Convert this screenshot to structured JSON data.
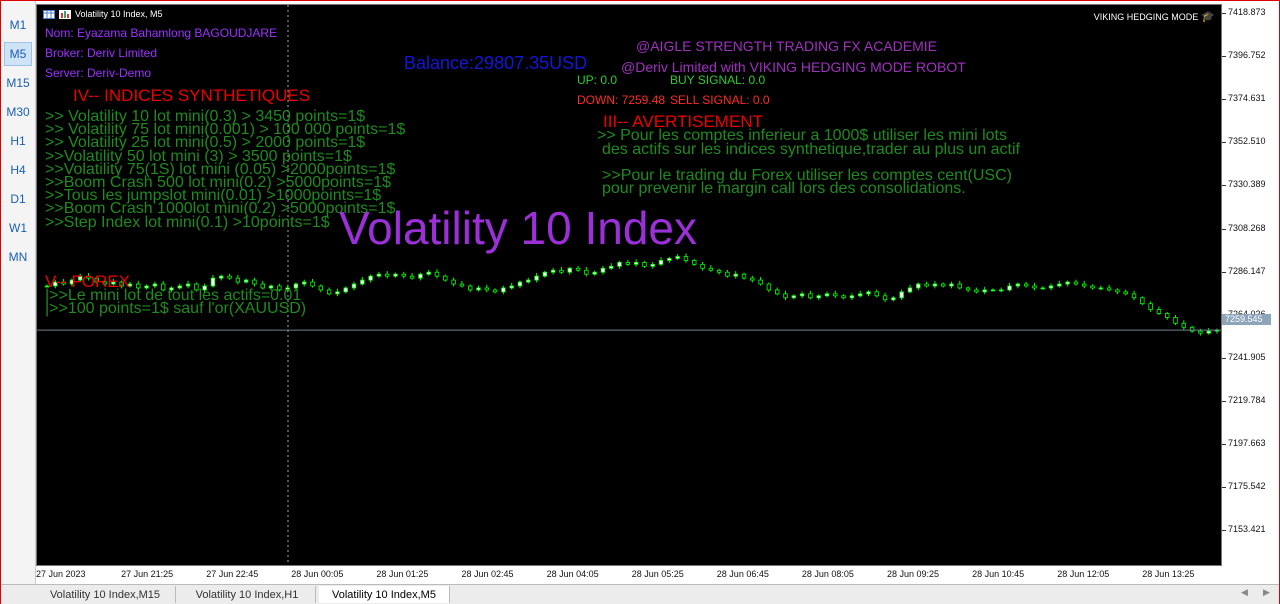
{
  "sidebar": {
    "timeframes": [
      "M1",
      "M5",
      "M15",
      "M30",
      "H1",
      "H4",
      "D1",
      "W1",
      "MN"
    ],
    "active": "M5"
  },
  "chart": {
    "title": "Volatility 10 Index, M5",
    "robot_label": "VIKING HEDGING MODE",
    "watermark": "Volatility 10 Index",
    "info": {
      "nom": "Nom: Eyazama Bahamlong BAGOUDJARE",
      "broker": "Broker: Deriv Limited",
      "server": "Server: Deriv-Demo"
    },
    "balance": "Balance:29807.35USD",
    "academy": "@AIGLE STRENGTH TRADING FX ACADEMIE",
    "deriv_robot": "@Deriv Limited with VIKING HEDGING MODE ROBOT",
    "signals": {
      "up": "UP: 0.0",
      "buy": "BUY SIGNAL: 0.0",
      "down": "DOWN: 7259.48",
      "sell": "SELL SIGNAL: 0.0"
    },
    "section_iv": {
      "title": "IV-- INDICES SYNTHETIQUES",
      "lines": [
        ">> Volatility 10 lot mini(0.3) > 3450 points=1$",
        ">> Volatility 75 lot mini(0.001) > 100 000 points=1$",
        ">> Volatility 25 lot mini(0.5) > 2000 points=1$",
        ">>Volatility 50 lot mini (3) > 3500 points=1$",
        ">>Volatility 75(1S) lot mini (0.05) >2000points=1$",
        ">>Boom Crash 500 lot mini(0.2) >5000points=1$",
        ">>Tous les jumpslot mini(0.01) >1000points=1$",
        ">>Boom Crash 1000lot mini(0.2) >5000points=1$",
        ">>Step Index lot mini(0.1) >10points=1$"
      ]
    },
    "section_v": {
      "title": "V-- FOREX",
      "lines": [
        "|>>Le mini lot de tout les actifs=0.01",
        "|>>100 points=1$ sauf l'or(XAUUSD)"
      ]
    },
    "section_iii": {
      "title": "III-- AVERTISEMENT",
      "lines": [
        ">> Pour les comptes inferieur a 1000$ utiliser les mini lots",
        "des actifs sur les indices synthetique,trader au plus un actif",
        ">>Pour le trading du Forex utiliser les comptes cent(USC)",
        "pour prevenir le margin call lors des consolidations."
      ]
    },
    "current_price": "7259.545",
    "colors": {
      "background": "#000000",
      "candle_bull": "#ffffff",
      "candle_bear": "#00ff00",
      "price_line": "#708090"
    }
  },
  "price_axis": [
    "7418.873",
    "7396.752",
    "7374.631",
    "7352.510",
    "7330.389",
    "7308.268",
    "7286.147",
    "7264.026",
    "7241.905",
    "7219.784",
    "7197.663",
    "7175.542",
    "7153.421"
  ],
  "time_axis": [
    "27 Jun 2023",
    "27 Jun 21:25",
    "27 Jun 22:45",
    "28 Jun 00:05",
    "28 Jun 01:25",
    "28 Jun 02:45",
    "28 Jun 04:05",
    "28 Jun 05:25",
    "28 Jun 06:45",
    "28 Jun 08:05",
    "28 Jun 09:25",
    "28 Jun 10:45",
    "28 Jun 12:05",
    "28 Jun 13:25"
  ],
  "tabs": [
    "Volatility 10 Index,M15",
    "Volatility 10 Index,H1",
    "Volatility 10 Index,M5"
  ],
  "active_tab": "Volatility 10 Index,M5",
  "chart_data": {
    "type": "candlestick",
    "ylim": [
      7140,
      7425
    ],
    "close_series": [
      7282,
      7284,
      7283,
      7285,
      7287,
      7286,
      7284,
      7283,
      7284,
      7282,
      7283,
      7281,
      7282,
      7283,
      7280,
      7281,
      7282,
      7283,
      7280,
      7282,
      7286,
      7287,
      7286,
      7284,
      7285,
      7283,
      7281,
      7282,
      7280,
      7281,
      7283,
      7284,
      7282,
      7280,
      7278,
      7279,
      7281,
      7283,
      7285,
      7287,
      7288,
      7287,
      7288,
      7287,
      7286,
      7288,
      7289,
      7287,
      7285,
      7283,
      7282,
      7280,
      7281,
      7280,
      7279,
      7281,
      7282,
      7284,
      7285,
      7287,
      7289,
      7290,
      7289,
      7291,
      7290,
      7288,
      7289,
      7291,
      7292,
      7294,
      7293,
      7294,
      7292,
      7293,
      7295,
      7296,
      7297,
      7295,
      7293,
      7291,
      7290,
      7289,
      7287,
      7288,
      7286,
      7285,
      7283,
      7280,
      7278,
      7276,
      7277,
      7278,
      7276,
      7277,
      7278,
      7277,
      7276,
      7277,
      7278,
      7279,
      7277,
      7275,
      7276,
      7279,
      7281,
      7283,
      7282,
      7283,
      7282,
      7283,
      7281,
      7280,
      7279,
      7280,
      7280,
      7280,
      7282,
      7283,
      7282,
      7281,
      7281,
      7282,
      7283,
      7284,
      7283,
      7282,
      7281,
      7281,
      7280,
      7279,
      7278,
      7276,
      7273,
      7270,
      7268,
      7266,
      7263,
      7261,
      7259,
      7258,
      7259,
      7259.545
    ]
  }
}
